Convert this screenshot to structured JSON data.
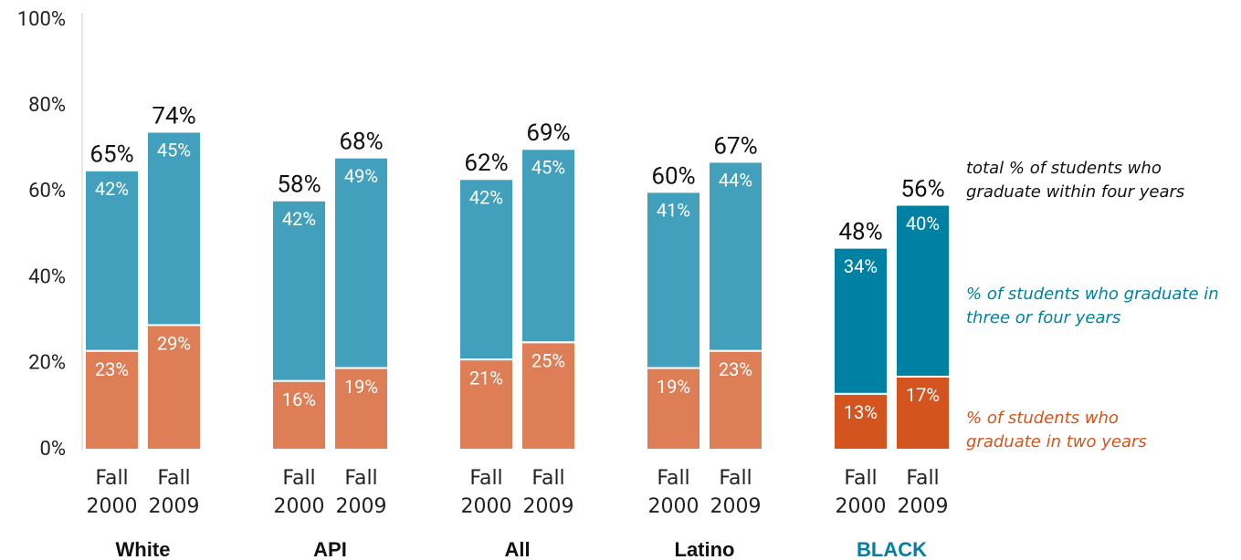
{
  "chart_data": {
    "type": "stacked_bar",
    "groups": [
      "White",
      "API",
      "All",
      "Latino",
      "BLACK"
    ],
    "categories": [
      "Fall 2000",
      "Fall 2009",
      "Fall 2000",
      "Fall 2009",
      "Fall 2000",
      "Fall 2009",
      "Fall 2000",
      "Fall 2009",
      "Fall 2000",
      "Fall 2009"
    ],
    "series": [
      {
        "name": "% of students who graduate in two years",
        "color": "#de7e57",
        "highlight_color": "#d4541f",
        "values": [
          23,
          29,
          16,
          19,
          21,
          25,
          19,
          23,
          13,
          17
        ],
        "value_labels": [
          "23%",
          "29%",
          "16%",
          "19%",
          "21%",
          "25%",
          "19%",
          "23%",
          "13%",
          "17%"
        ]
      },
      {
        "name": "% of students who graduate in three or four years",
        "color": "#42a0bd",
        "highlight_color": "#0081a3",
        "values": [
          42,
          45,
          42,
          49,
          42,
          45,
          41,
          44,
          34,
          40
        ],
        "value_labels": [
          "42%",
          "45%",
          "42%",
          "49%",
          "42%",
          "45%",
          "41%",
          "44%",
          "34%",
          "40%"
        ]
      }
    ],
    "totals_name": "total % of students who graduate within four years",
    "totals": [
      65,
      74,
      58,
      68,
      62,
      69,
      60,
      67,
      48,
      56
    ],
    "total_labels": [
      "65%",
      "74%",
      "58%",
      "68%",
      "62%",
      "69%",
      "60%",
      "67%",
      "48%",
      "56%"
    ],
    "highlight_group": 4,
    "highlight_label_color": "#0081a3",
    "ylim": [
      0,
      100
    ],
    "yticks": [
      {
        "value": 0,
        "label": "0%"
      },
      {
        "value": 20,
        "label": "20%"
      },
      {
        "value": 40,
        "label": "40%"
      },
      {
        "value": 60,
        "label": "60%"
      },
      {
        "value": 80,
        "label": "80%"
      },
      {
        "value": 100,
        "label": "100%"
      }
    ]
  }
}
